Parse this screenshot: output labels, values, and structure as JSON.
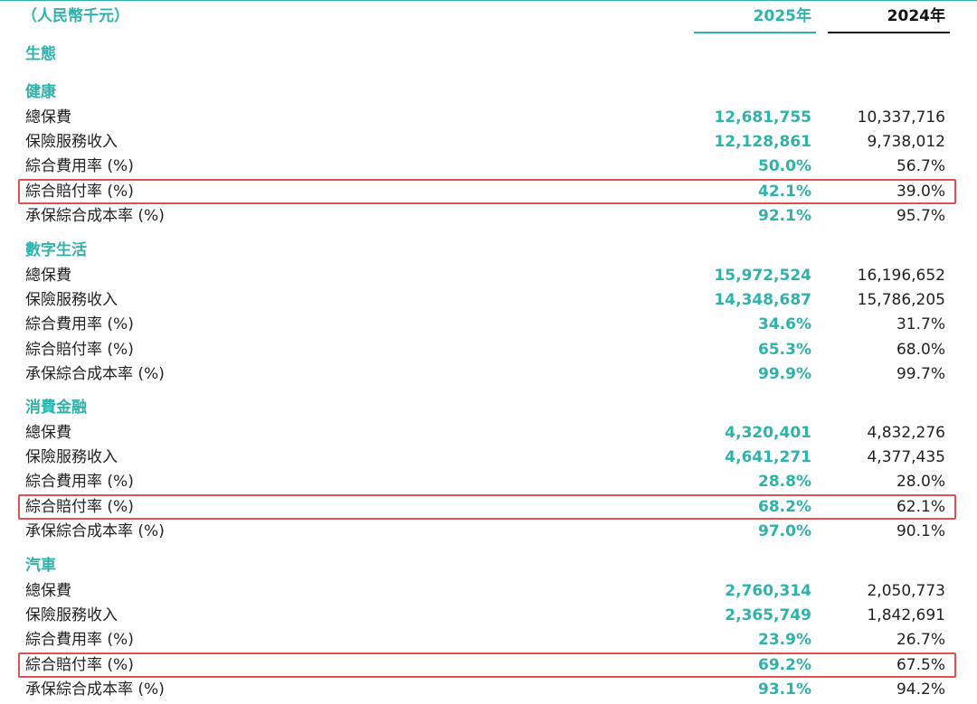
{
  "header": {
    "unit": "（人民幣千元）",
    "columns": [
      "2025年",
      "2024年"
    ]
  },
  "group": "生態",
  "sections": [
    {
      "title": "健康",
      "rows": [
        {
          "label": "總保費",
          "values": [
            "12,681,755",
            "10,337,716"
          ]
        },
        {
          "label": "保險服務收入",
          "values": [
            "12,128,861",
            "9,738,012"
          ]
        },
        {
          "label": "綜合費用率 (%)",
          "values": [
            "50.0%",
            "56.7%"
          ]
        },
        {
          "label": "綜合賠付率 (%)",
          "values": [
            "42.1%",
            "39.0%"
          ]
        },
        {
          "label": "承保綜合成本率 (%)",
          "values": [
            "92.1%",
            "95.7%"
          ]
        }
      ]
    },
    {
      "title": "數字生活",
      "rows": [
        {
          "label": "總保費",
          "values": [
            "15,972,524",
            "16,196,652"
          ]
        },
        {
          "label": "保險服務收入",
          "values": [
            "14,348,687",
            "15,786,205"
          ]
        },
        {
          "label": "綜合費用率 (%)",
          "values": [
            "34.6%",
            "31.7%"
          ]
        },
        {
          "label": "綜合賠付率 (%)",
          "values": [
            "65.3%",
            "68.0%"
          ]
        },
        {
          "label": "承保綜合成本率 (%)",
          "values": [
            "99.9%",
            "99.7%"
          ]
        }
      ]
    },
    {
      "title": "消費金融",
      "rows": [
        {
          "label": "總保費",
          "values": [
            "4,320,401",
            "4,832,276"
          ]
        },
        {
          "label": "保險服務收入",
          "values": [
            "4,641,271",
            "4,377,435"
          ]
        },
        {
          "label": "綜合費用率 (%)",
          "values": [
            "28.8%",
            "28.0%"
          ]
        },
        {
          "label": "綜合賠付率 (%)",
          "values": [
            "68.2%",
            "62.1%"
          ]
        },
        {
          "label": "承保綜合成本率 (%)",
          "values": [
            "97.0%",
            "90.1%"
          ]
        }
      ]
    },
    {
      "title": "汽車",
      "rows": [
        {
          "label": "總保費",
          "values": [
            "2,760,314",
            "2,050,773"
          ]
        },
        {
          "label": "保險服務收入",
          "values": [
            "2,365,749",
            "1,842,691"
          ]
        },
        {
          "label": "綜合費用率 (%)",
          "values": [
            "23.9%",
            "26.7%"
          ]
        },
        {
          "label": "綜合賠付率 (%)",
          "values": [
            "69.2%",
            "67.5%"
          ]
        },
        {
          "label": "承保綜合成本率 (%)",
          "values": [
            "93.1%",
            "94.2%"
          ]
        }
      ]
    }
  ]
}
